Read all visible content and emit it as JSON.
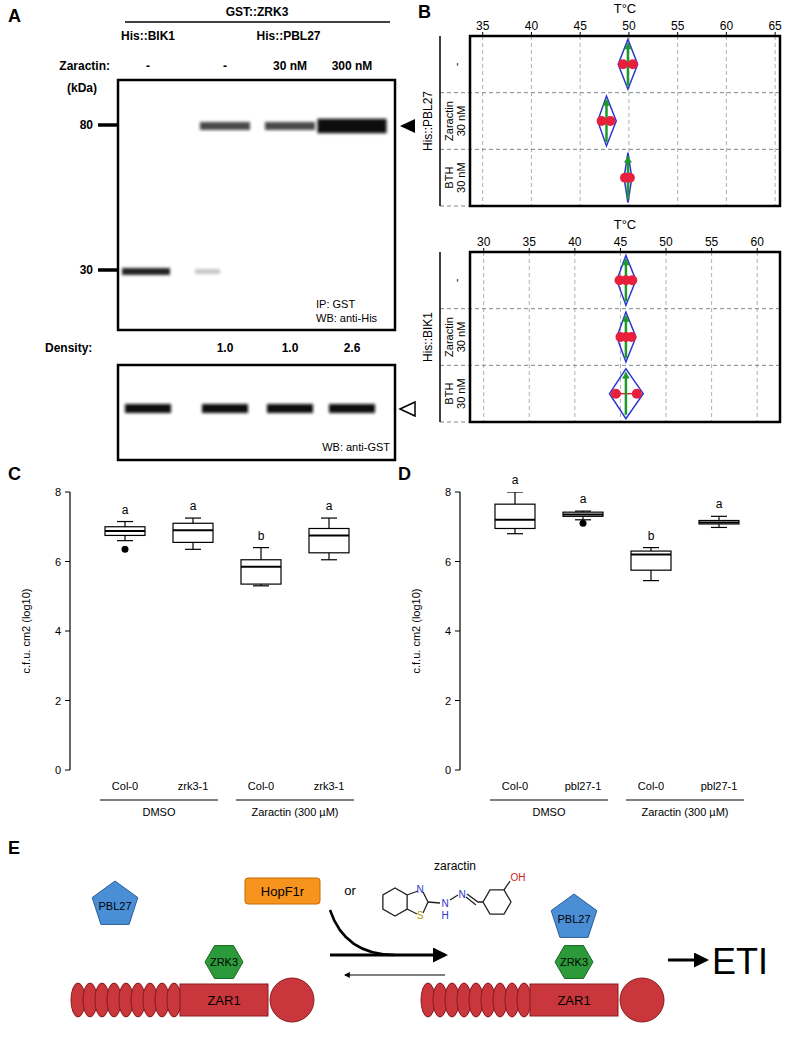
{
  "panel_labels": [
    "A",
    "B",
    "C",
    "D",
    "E"
  ],
  "blot": {
    "construct": "GST::ZRK3",
    "lane_groups": [
      {
        "label": "His::BIK1",
        "lanes": 1
      },
      {
        "label": "His::PBL27",
        "lanes": 3
      }
    ],
    "treatment_label": "Zaractin:",
    "treatments": [
      "-",
      "-",
      "30 nM",
      "300 nM"
    ],
    "size_unit": "(kDa)",
    "size_markers": [
      80,
      30
    ],
    "caption_top": [
      "IP: GST",
      "WB: anti-His"
    ],
    "density_label": "Density:",
    "density": [
      null,
      1.0,
      1.0,
      2.6
    ],
    "density_labels": [
      null,
      "1.0",
      "1.0",
      "2.6"
    ],
    "caption_bottom": "WB: anti-GST"
  },
  "chart_data": [
    {
      "type": "interval",
      "xlabel": "T°C",
      "ylabel": "His::PBL27",
      "categories": [
        "-",
        "Zaractin 30 nM",
        "BTH 30 nM"
      ],
      "values": [
        49.9,
        47.7,
        49.9
      ],
      "ci_low": [
        48.9,
        46.8,
        49.5
      ],
      "ci_high": [
        50.9,
        48.7,
        50.3
      ],
      "replicates": [
        [
          49.4,
          50.4
        ],
        [
          47.2,
          48.1
        ],
        [
          49.6,
          50.1
        ]
      ],
      "xlim": [
        33.7,
        65.5
      ],
      "xticks": [
        35,
        40,
        45,
        50,
        55,
        60,
        65
      ],
      "grid": true
    },
    {
      "type": "interval",
      "xlabel": "T°C",
      "ylabel": "His::BIK1",
      "categories": [
        "-",
        "Zaractin 30 nM",
        "BTH 30 nM"
      ],
      "values": [
        45.6,
        45.6,
        45.6
      ],
      "ci_low": [
        44.6,
        44.6,
        43.8
      ],
      "ci_high": [
        46.7,
        46.7,
        47.5
      ],
      "replicates": [
        [
          44.9,
          45.6,
          46.3
        ],
        [
          45.0,
          45.6,
          46.2
        ],
        [
          44.5,
          46.8
        ]
      ],
      "xlim": [
        28.5,
        62.5
      ],
      "xticks": [
        30,
        35,
        40,
        45,
        50,
        55,
        60
      ],
      "grid": true
    },
    {
      "type": "box",
      "ylabel": "c.f.u. cm2 (log10)",
      "categories": [
        "Col-0",
        "zrk3-1",
        "Col-0",
        "zrk3-1"
      ],
      "groups": [
        "DMSO",
        "DMSO",
        "Zaractin (300 µM)",
        "Zaractin (300 µM)"
      ],
      "min": [
        6.6,
        6.35,
        5.3,
        6.05
      ],
      "q1": [
        6.75,
        6.55,
        5.35,
        6.25
      ],
      "median": [
        6.88,
        6.9,
        5.85,
        6.75
      ],
      "q3": [
        7.0,
        7.1,
        6.05,
        6.95
      ],
      "max": [
        7.15,
        7.25,
        6.4,
        7.25
      ],
      "outliers": [
        [
          6.35
        ],
        [],
        [],
        []
      ],
      "annotations": [
        "a",
        "a",
        "b",
        "a"
      ],
      "ylim": [
        0,
        8
      ],
      "yticks": [
        0,
        2,
        4,
        6,
        8
      ]
    },
    {
      "type": "box",
      "ylabel": "c.f.u. cm2 (log10)",
      "categories": [
        "Col-0",
        "pbl27-1",
        "Col-0",
        "pbl27-1"
      ],
      "groups": [
        "DMSO",
        "DMSO",
        "Zaractin (300 µM)",
        "Zaractin (300 µM)"
      ],
      "min": [
        6.8,
        7.2,
        5.45,
        6.98
      ],
      "q1": [
        6.95,
        7.3,
        5.75,
        7.08
      ],
      "median": [
        7.2,
        7.35,
        6.2,
        7.12
      ],
      "q3": [
        7.65,
        7.42,
        6.3,
        7.18
      ],
      "max": [
        8.0,
        7.45,
        6.4,
        7.3
      ],
      "outliers": [
        [],
        [
          7.1
        ],
        [],
        []
      ],
      "annotations": [
        "a",
        "a",
        "b",
        "a"
      ],
      "ylim": [
        0,
        8
      ],
      "yticks": [
        0,
        2,
        4,
        6,
        8
      ]
    }
  ],
  "diagram": {
    "effector": "HopF1r",
    "connector": "or",
    "compound": "zaractin",
    "atoms": [
      "N",
      "S",
      "N",
      "H",
      "N",
      "OH"
    ],
    "complexes": [
      {
        "pbl27": "PBL27",
        "zrk3": "ZRK3",
        "zar1": "ZAR1"
      },
      {
        "pbl27": "PBL27",
        "zrk3": "ZRK3",
        "zar1": "ZAR1"
      }
    ],
    "outcome": "ETI"
  }
}
